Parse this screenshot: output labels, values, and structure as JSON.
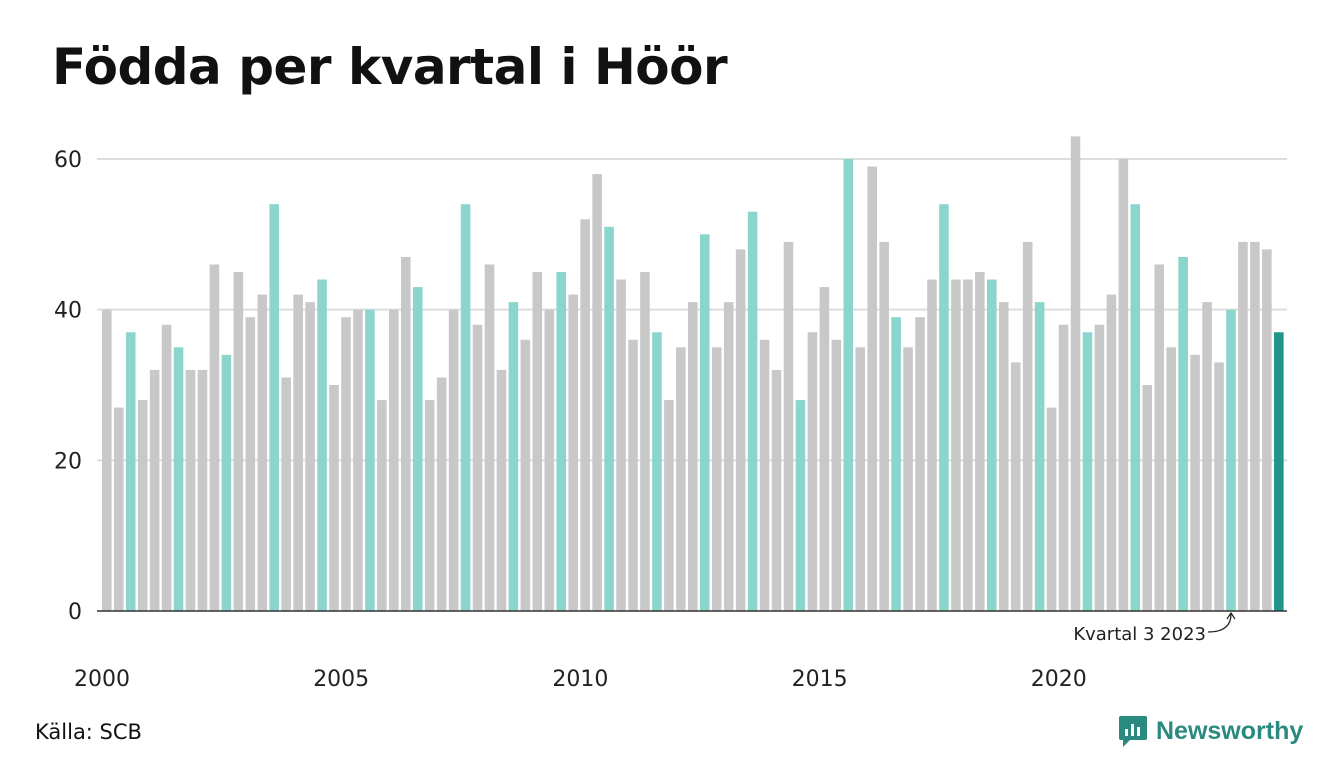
{
  "title": "Födda per kvartal i Höör",
  "source": "Källa: SCB",
  "brand": "Newsworthy",
  "colors": {
    "gray": "#c8c8c8",
    "q3": "#8ad5cc",
    "latest": "#1f9688",
    "axis": "#333333",
    "grid": "#dddddd",
    "brand": "#2a8a7f"
  },
  "chart_data": {
    "type": "bar",
    "title": "Födda per kvartal i Höör",
    "xlabel": "",
    "ylabel": "",
    "ylim": [
      0,
      65
    ],
    "yticks": [
      0,
      20,
      40,
      60
    ],
    "xticks": [
      "2000",
      "2005",
      "2010",
      "2015",
      "2020"
    ],
    "grid": true,
    "highlight": "third quarter of each year",
    "annotation": "Kvartal 3 2023",
    "start": "2000 Q1",
    "values": [
      40,
      27,
      37,
      28,
      32,
      38,
      35,
      32,
      32,
      46,
      34,
      45,
      39,
      42,
      54,
      31,
      42,
      41,
      44,
      30,
      39,
      40,
      40,
      28,
      40,
      47,
      43,
      28,
      31,
      40,
      54,
      38,
      46,
      32,
      41,
      36,
      45,
      40,
      45,
      42,
      52,
      58,
      51,
      44,
      36,
      45,
      37,
      28,
      35,
      41,
      50,
      35,
      41,
      48,
      53,
      36,
      32,
      49,
      28,
      37,
      43,
      36,
      60,
      35,
      59,
      49,
      39,
      35,
      39,
      44,
      54,
      44,
      44,
      45,
      44,
      41,
      33,
      49,
      41,
      27,
      38,
      63,
      37,
      38,
      42,
      60,
      54,
      30,
      46,
      35,
      47,
      34,
      41,
      33,
      40,
      49,
      49,
      48,
      37
    ]
  }
}
